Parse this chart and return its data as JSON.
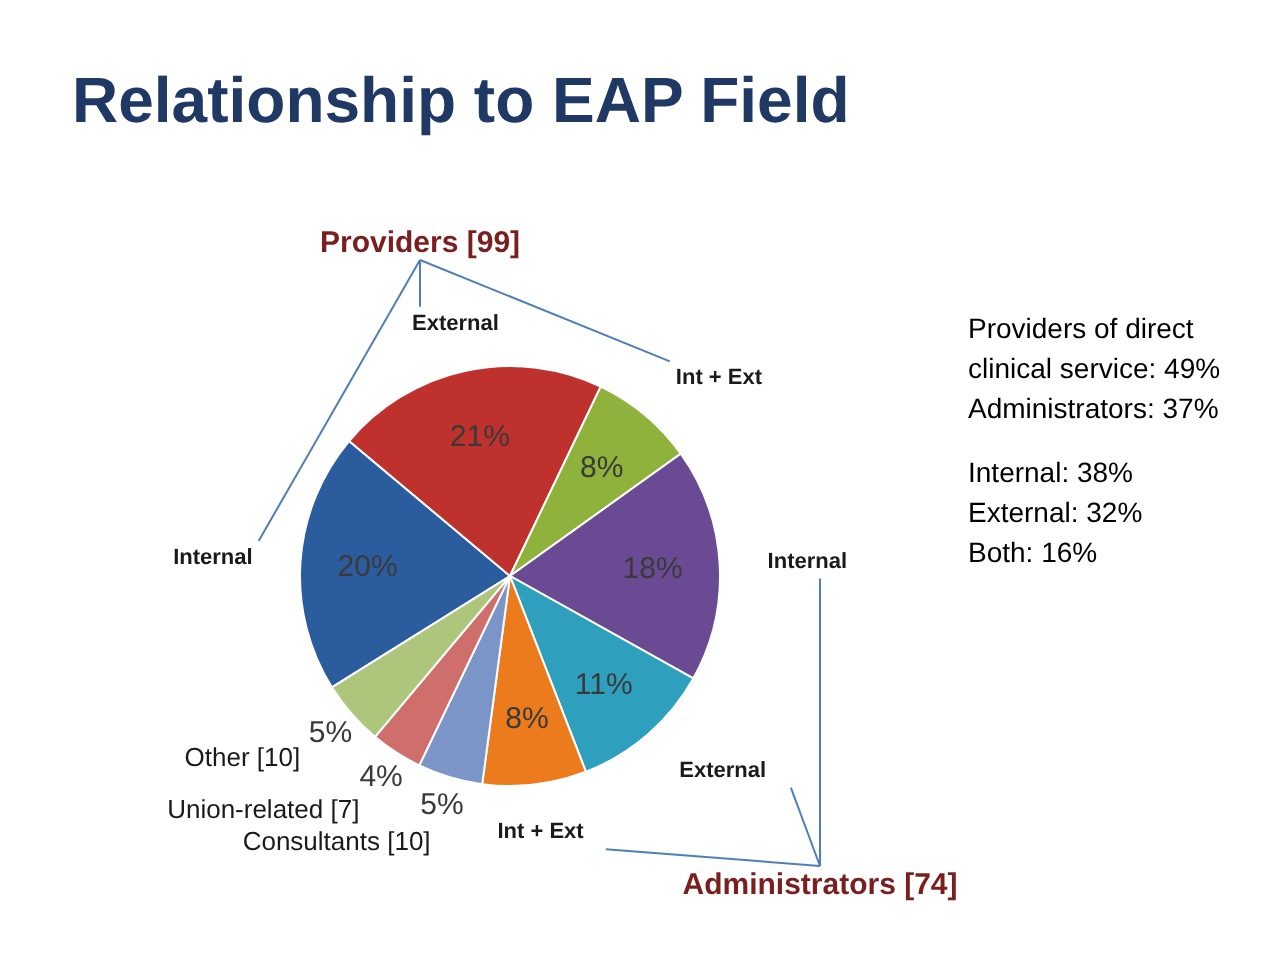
{
  "chart_data": {
    "type": "pie",
    "title": "Relationship to EAP Field",
    "categories": [
      "Internal",
      "External",
      "Int + Ext",
      "Internal",
      "External",
      "Int + Ext",
      "Consultants [10]",
      "Union-related [7]",
      "Other [10]"
    ],
    "values": [
      20,
      21,
      8,
      18,
      11,
      8,
      5,
      4,
      5
    ],
    "value_labels": [
      "20%",
      "21%",
      "8%",
      "18%",
      "11%",
      "8%",
      "5%",
      "4%",
      "5%"
    ],
    "colors": [
      "#2b5d9e",
      "#bf312d",
      "#8fb23c",
      "#6b4a94",
      "#2ea0bd",
      "#ec7b1e",
      "#7c95c8",
      "#cf6f6b",
      "#aec67c"
    ],
    "annotations": [
      "Providers [99]",
      "Administrators [74]",
      "Providers of direct clinical service: 49%",
      "Administrators: 37%",
      "Internal: 38%",
      "External: 32%",
      "Both: 16%"
    ]
  }
}
